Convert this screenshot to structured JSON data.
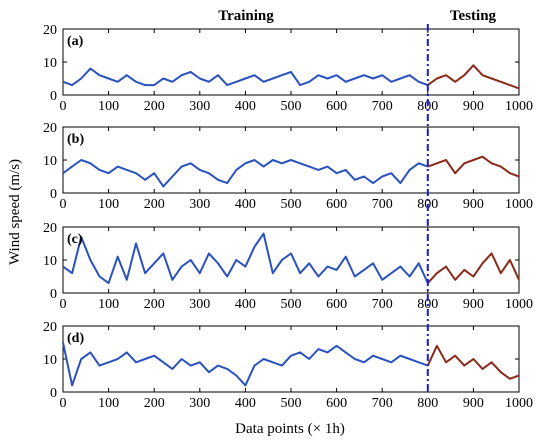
{
  "figure": {
    "header_left": "Training",
    "header_right": "Testing",
    "xlabel": "Data points (× 1h)",
    "ylabel": "Wind speed (m/s)",
    "split_at": 800,
    "colors": {
      "training_line": "#2a52be",
      "testing_line": "#8b2a1a",
      "split_line": "#1a1acc",
      "frame": "#000000"
    }
  },
  "chart_data": [
    {
      "type": "line",
      "panel_label": "(a)",
      "xlim": [
        0,
        1000
      ],
      "ylim": [
        0,
        20
      ],
      "x_ticks": [
        0,
        100,
        200,
        300,
        400,
        500,
        600,
        700,
        800,
        900,
        1000
      ],
      "y_ticks": [
        0,
        10,
        20
      ],
      "x": [
        0,
        20,
        40,
        60,
        80,
        100,
        120,
        140,
        160,
        180,
        200,
        220,
        240,
        260,
        280,
        300,
        320,
        340,
        360,
        380,
        400,
        420,
        440,
        460,
        480,
        500,
        520,
        540,
        560,
        580,
        600,
        620,
        640,
        660,
        680,
        700,
        720,
        740,
        760,
        780,
        800,
        820,
        840,
        860,
        880,
        900,
        920,
        940,
        960,
        980,
        1000
      ],
      "values": [
        4,
        3,
        5,
        8,
        6,
        5,
        4,
        6,
        4,
        3,
        3,
        5,
        4,
        6,
        7,
        5,
        4,
        6,
        3,
        4,
        5,
        6,
        4,
        5,
        6,
        7,
        3,
        4,
        6,
        5,
        6,
        4,
        5,
        6,
        5,
        6,
        4,
        5,
        6,
        4,
        3,
        5,
        6,
        4,
        6,
        9,
        6,
        5,
        4,
        3,
        2
      ]
    },
    {
      "type": "line",
      "panel_label": "(b)",
      "xlim": [
        0,
        1000
      ],
      "ylim": [
        0,
        20
      ],
      "x_ticks": [
        0,
        100,
        200,
        300,
        400,
        500,
        600,
        700,
        800,
        900,
        1000
      ],
      "y_ticks": [
        0,
        10,
        20
      ],
      "x": [
        0,
        20,
        40,
        60,
        80,
        100,
        120,
        140,
        160,
        180,
        200,
        220,
        240,
        260,
        280,
        300,
        320,
        340,
        360,
        380,
        400,
        420,
        440,
        460,
        480,
        500,
        520,
        540,
        560,
        580,
        600,
        620,
        640,
        660,
        680,
        700,
        720,
        740,
        760,
        780,
        800,
        820,
        840,
        860,
        880,
        900,
        920,
        940,
        960,
        980,
        1000
      ],
      "values": [
        6,
        8,
        10,
        9,
        7,
        6,
        8,
        7,
        6,
        4,
        6,
        2,
        5,
        8,
        9,
        7,
        6,
        4,
        3,
        7,
        9,
        10,
        8,
        10,
        9,
        10,
        9,
        8,
        7,
        8,
        6,
        7,
        4,
        5,
        3,
        5,
        6,
        3,
        7,
        9,
        8,
        9,
        10,
        6,
        9,
        10,
        11,
        9,
        8,
        6,
        5
      ]
    },
    {
      "type": "line",
      "panel_label": "(c)",
      "xlim": [
        0,
        1000
      ],
      "ylim": [
        0,
        20
      ],
      "x_ticks": [
        0,
        100,
        200,
        300,
        400,
        500,
        600,
        700,
        800,
        900,
        1000
      ],
      "y_ticks": [
        0,
        10,
        20
      ],
      "x": [
        0,
        20,
        40,
        60,
        80,
        100,
        120,
        140,
        160,
        180,
        200,
        220,
        240,
        260,
        280,
        300,
        320,
        340,
        360,
        380,
        400,
        420,
        440,
        460,
        480,
        500,
        520,
        540,
        560,
        580,
        600,
        620,
        640,
        660,
        680,
        700,
        720,
        740,
        760,
        780,
        800,
        820,
        840,
        860,
        880,
        900,
        920,
        940,
        960,
        980,
        1000
      ],
      "values": [
        8,
        6,
        17,
        10,
        5,
        3,
        11,
        4,
        15,
        6,
        9,
        12,
        4,
        8,
        10,
        6,
        12,
        9,
        5,
        10,
        8,
        14,
        18,
        6,
        10,
        12,
        6,
        9,
        5,
        8,
        7,
        11,
        5,
        7,
        9,
        4,
        6,
        8,
        5,
        9,
        3,
        6,
        8,
        4,
        7,
        5,
        9,
        12,
        6,
        10,
        4
      ]
    },
    {
      "type": "line",
      "panel_label": "(d)",
      "xlim": [
        0,
        1000
      ],
      "ylim": [
        0,
        20
      ],
      "x_ticks": [
        0,
        100,
        200,
        300,
        400,
        500,
        600,
        700,
        800,
        900,
        1000
      ],
      "y_ticks": [
        0,
        10,
        20
      ],
      "x": [
        0,
        20,
        40,
        60,
        80,
        100,
        120,
        140,
        160,
        180,
        200,
        220,
        240,
        260,
        280,
        300,
        320,
        340,
        360,
        380,
        400,
        420,
        440,
        460,
        480,
        500,
        520,
        540,
        560,
        580,
        600,
        620,
        640,
        660,
        680,
        700,
        720,
        740,
        760,
        780,
        800,
        820,
        840,
        860,
        880,
        900,
        920,
        940,
        960,
        980,
        1000
      ],
      "values": [
        15,
        2,
        10,
        12,
        8,
        9,
        10,
        12,
        9,
        10,
        11,
        9,
        7,
        10,
        8,
        9,
        6,
        8,
        7,
        5,
        2,
        8,
        10,
        9,
        8,
        11,
        12,
        10,
        13,
        12,
        14,
        12,
        10,
        9,
        11,
        10,
        9,
        11,
        10,
        9,
        8,
        14,
        9,
        11,
        8,
        10,
        7,
        9,
        6,
        4,
        5
      ]
    }
  ]
}
